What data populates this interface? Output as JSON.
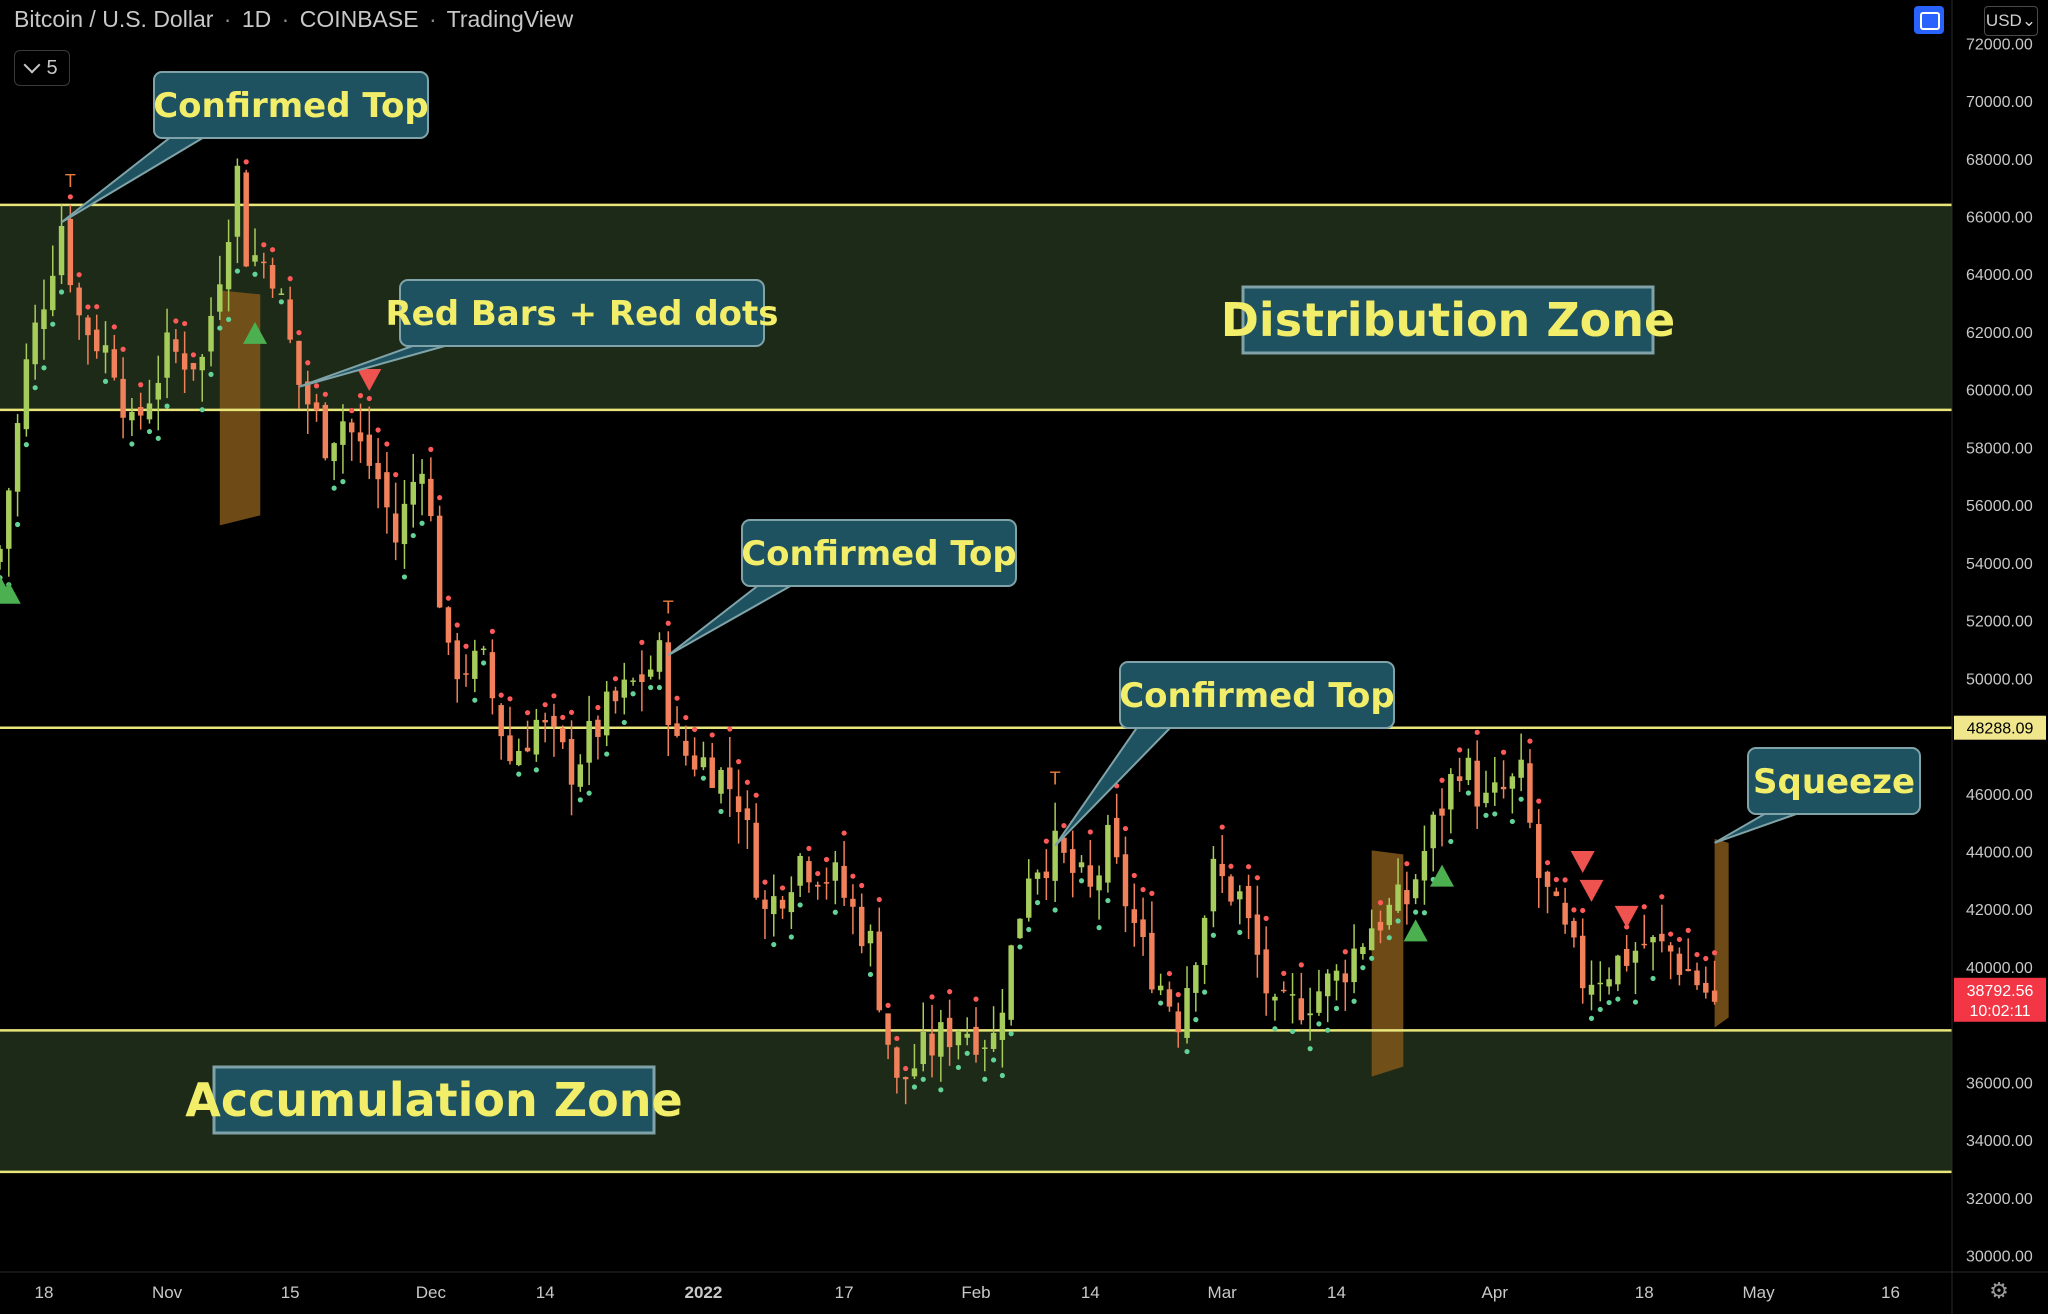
{
  "header": {
    "symbol": "Bitcoin / U.S. Dollar",
    "interval": "1D",
    "exchange": "COINBASE",
    "platform": "TradingView",
    "indicator_count": "5",
    "currency": "USD"
  },
  "colors": {
    "background": "#000000",
    "up": "#a6cc5c",
    "down": "#f0815a",
    "zone_line": "#e8e67a",
    "zone_fill": "#1d2a17",
    "callout_fill": "#1e5260",
    "callout_text": "#f2ee6a",
    "buy_signal": "#4caf50",
    "sell_signal": "#ef5350",
    "squeeze": "#7a5318",
    "price_label": "#f23645",
    "level_label": "#f0e68c"
  },
  "icons": {
    "indicator_toggle": "chevron-down-icon",
    "fullscreen": "screenshot-icon",
    "settings": "gear-icon"
  },
  "chart_data": {
    "type": "candlestick",
    "title": "Bitcoin / U.S. Dollar · 1D · COINBASE · TradingView",
    "y_range": [
      29500,
      73500
    ],
    "y_ticks": [
      30000,
      32000,
      34000,
      36000,
      38000,
      40000,
      42000,
      44000,
      46000,
      48000,
      50000,
      52000,
      54000,
      56000,
      58000,
      60000,
      62000,
      64000,
      66000,
      68000,
      70000,
      72000
    ],
    "y_tick_labels": [
      "30000.00",
      "32000.00",
      "34000.00",
      "36000.00",
      "",
      "40000.00",
      "42000.00",
      "44000.00",
      "46000.00",
      "",
      "50000.00",
      "52000.00",
      "54000.00",
      "56000.00",
      "58000.00",
      "60000.00",
      "62000.00",
      "64000.00",
      "66000.00",
      "68000.00",
      "70000.00",
      "72000.00"
    ],
    "x_range": [
      "2021-10-13",
      "2022-05-23"
    ],
    "x_ticks": [
      {
        "date": "2021-10-18",
        "label": "18"
      },
      {
        "date": "2021-11-01",
        "label": "Nov"
      },
      {
        "date": "2021-11-15",
        "label": "15"
      },
      {
        "date": "2021-12-01",
        "label": "Dec"
      },
      {
        "date": "2021-12-14",
        "label": "14"
      },
      {
        "date": "2022-01-01",
        "label": "2022"
      },
      {
        "date": "2022-01-17",
        "label": "17"
      },
      {
        "date": "2022-02-01",
        "label": "Feb"
      },
      {
        "date": "2022-02-14",
        "label": "14"
      },
      {
        "date": "2022-03-01",
        "label": "Mar"
      },
      {
        "date": "2022-03-14",
        "label": "14"
      },
      {
        "date": "2022-04-01",
        "label": "Apr"
      },
      {
        "date": "2022-04-18",
        "label": "18"
      },
      {
        "date": "2022-05-01",
        "label": "May"
      },
      {
        "date": "2022-05-16",
        "label": "16"
      }
    ],
    "horizontal_levels": [
      66400,
      59300,
      48288,
      37800,
      32900
    ],
    "zones": [
      {
        "label": "Distribution Zone",
        "from": 59300,
        "to": 66400
      },
      {
        "label": "Accumulation Zone",
        "from": 32900,
        "to": 37800
      }
    ],
    "current_price": {
      "label": "38792.56",
      "countdown": "10:02:11",
      "value": 38792.56
    },
    "level_price": {
      "label": "48288.09",
      "value": 48288.09
    },
    "anchors": [
      [
        "2021-10-13",
        54500
      ],
      [
        "2021-10-16",
        60800
      ],
      [
        "2021-10-20",
        65800
      ],
      [
        "2021-10-22",
        62500
      ],
      [
        "2021-10-26",
        61000
      ],
      [
        "2021-10-28",
        58500
      ],
      [
        "2021-11-01",
        61300
      ],
      [
        "2021-11-05",
        61000
      ],
      [
        "2021-11-09",
        67500
      ],
      [
        "2021-11-10",
        64800
      ],
      [
        "2021-11-13",
        64200
      ],
      [
        "2021-11-16",
        60200
      ],
      [
        "2021-11-19",
        58300
      ],
      [
        "2021-11-21",
        59000
      ],
      [
        "2021-11-25",
        56900
      ],
      [
        "2021-11-27",
        54800
      ],
      [
        "2021-11-30",
        57800
      ],
      [
        "2021-12-03",
        50500
      ],
      [
        "2021-12-07",
        50400
      ],
      [
        "2021-12-10",
        47200
      ],
      [
        "2021-12-13",
        48500
      ],
      [
        "2021-12-17",
        46900
      ],
      [
        "2021-12-21",
        48800
      ],
      [
        "2021-12-27",
        50700
      ],
      [
        "2021-12-29",
        47500
      ],
      [
        "2022-01-02",
        47000
      ],
      [
        "2022-01-05",
        45900
      ],
      [
        "2022-01-08",
        41800
      ],
      [
        "2022-01-12",
        43800
      ],
      [
        "2022-01-16",
        43000
      ],
      [
        "2022-01-20",
        40800
      ],
      [
        "2022-01-23",
        35800
      ],
      [
        "2022-01-26",
        37000
      ],
      [
        "2022-01-30",
        38000
      ],
      [
        "2022-02-03",
        37500
      ],
      [
        "2022-02-07",
        43500
      ],
      [
        "2022-02-10",
        44000
      ],
      [
        "2022-02-14",
        42500
      ],
      [
        "2022-02-16",
        44200
      ],
      [
        "2022-02-20",
        40500
      ],
      [
        "2022-02-24",
        38300
      ],
      [
        "2022-02-28",
        43200
      ],
      [
        "2022-03-03",
        42400
      ],
      [
        "2022-03-07",
        38200
      ],
      [
        "2022-03-14",
        39600
      ],
      [
        "2022-03-18",
        41500
      ],
      [
        "2022-03-22",
        42300
      ],
      [
        "2022-03-24",
        44000
      ],
      [
        "2022-03-28",
        47200
      ],
      [
        "2022-03-31",
        45600
      ],
      [
        "2022-04-04",
        46500
      ],
      [
        "2022-04-06",
        43100
      ],
      [
        "2022-04-11",
        39600
      ],
      [
        "2022-04-14",
        40000
      ],
      [
        "2022-04-18",
        40800
      ],
      [
        "2022-04-21",
        40500
      ],
      [
        "2022-04-24",
        39500
      ],
      [
        "2022-04-26",
        38792.56
      ]
    ],
    "confirmed_top_markers": [
      {
        "date": "2021-10-21",
        "label": "T"
      },
      {
        "date": "2021-12-28",
        "label": "T"
      },
      {
        "date": "2022-02-10",
        "label": "T"
      }
    ],
    "buy_signals": [
      {
        "date": "2021-10-13",
        "value": 53200
      },
      {
        "date": "2021-10-14",
        "value": 53000
      },
      {
        "date": "2021-11-11",
        "value": 62000
      },
      {
        "date": "2022-03-23",
        "value": 41300
      },
      {
        "date": "2022-03-26",
        "value": 43200
      }
    ],
    "sell_signals": [
      {
        "date": "2021-11-24",
        "value": 60300
      },
      {
        "date": "2022-04-11",
        "value": 43600
      },
      {
        "date": "2022-04-12",
        "value": 42600
      },
      {
        "date": "2022-04-16",
        "value": 41700
      }
    ],
    "squeeze_bands": [
      {
        "start": "2021-11-07",
        "end": "2021-11-11",
        "high": 63300,
        "low": 55300
      },
      {
        "start": "2022-03-18",
        "end": "2022-03-21",
        "high": 43900,
        "low": 36200
      },
      {
        "start": "2022-04-26",
        "end": "2022-04-27",
        "high": 44300,
        "low": 37900
      }
    ],
    "annotations": [
      {
        "label": "Confirmed Top",
        "target_date": "2021-10-20",
        "target_value": 65800
      },
      {
        "label": "Red Bars + Red dots",
        "target_date": "2021-11-16",
        "target_value": 60100
      },
      {
        "label": "Confirmed Top",
        "target_date": "2021-12-28",
        "target_value": 50800
      },
      {
        "label": "Confirmed Top",
        "target_date": "2022-02-10",
        "target_value": 44200
      },
      {
        "label": "Squeeze",
        "target_date": "2022-04-26",
        "target_value": 44300
      }
    ]
  }
}
